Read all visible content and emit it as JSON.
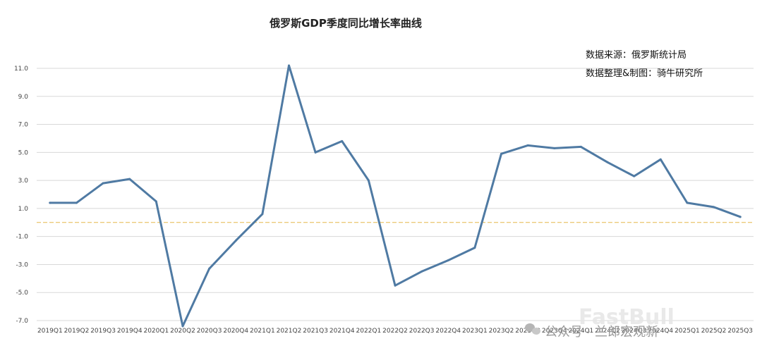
{
  "chart_data": {
    "type": "line",
    "title": "俄罗斯GDP季度同比增长率曲线",
    "annotations": [
      "数据来源：俄罗斯统计局",
      "数据整理&制图：骑牛研究所"
    ],
    "xlabel": "",
    "ylabel": "",
    "ylim": [
      -7.0,
      11.0
    ],
    "yticks": [
      "11.0",
      "9.0",
      "7.0",
      "5.0",
      "3.0",
      "1.0",
      "-1.0",
      "-3.0",
      "-5.0",
      "-7.0"
    ],
    "grid": true,
    "reference_line": 0,
    "categories": [
      "2019Q1",
      "2019Q2",
      "2019Q3",
      "2019Q4",
      "2020Q1",
      "2020Q2",
      "2020Q3",
      "2020Q4",
      "2021Q1",
      "2021Q2",
      "2021Q3",
      "2021Q4",
      "2022Q1",
      "2022Q2",
      "2022Q3",
      "2022Q4",
      "2023Q1",
      "2023Q2",
      "2023Q3",
      "2023Q4",
      "2024Q1",
      "2024Q2",
      "2024Q3",
      "2024Q4",
      "2025Q1",
      "2025Q2",
      "2025Q3"
    ],
    "series": [
      {
        "values": [
          1.4,
          1.4,
          2.8,
          3.1,
          1.5,
          -7.4,
          -3.3,
          -1.3,
          0.6,
          11.2,
          5.0,
          5.8,
          3.0,
          -4.5,
          -3.5,
          -2.7,
          -1.8,
          4.9,
          5.5,
          5.3,
          5.4,
          4.3,
          3.3,
          4.5,
          1.4,
          1.1,
          0.4
        ],
        "color": "#4f7aa3"
      }
    ]
  },
  "watermark": {
    "text": "公众号 · 兰郎宏观新",
    "brand": "FastBull",
    "icon": "wechat-icon"
  }
}
